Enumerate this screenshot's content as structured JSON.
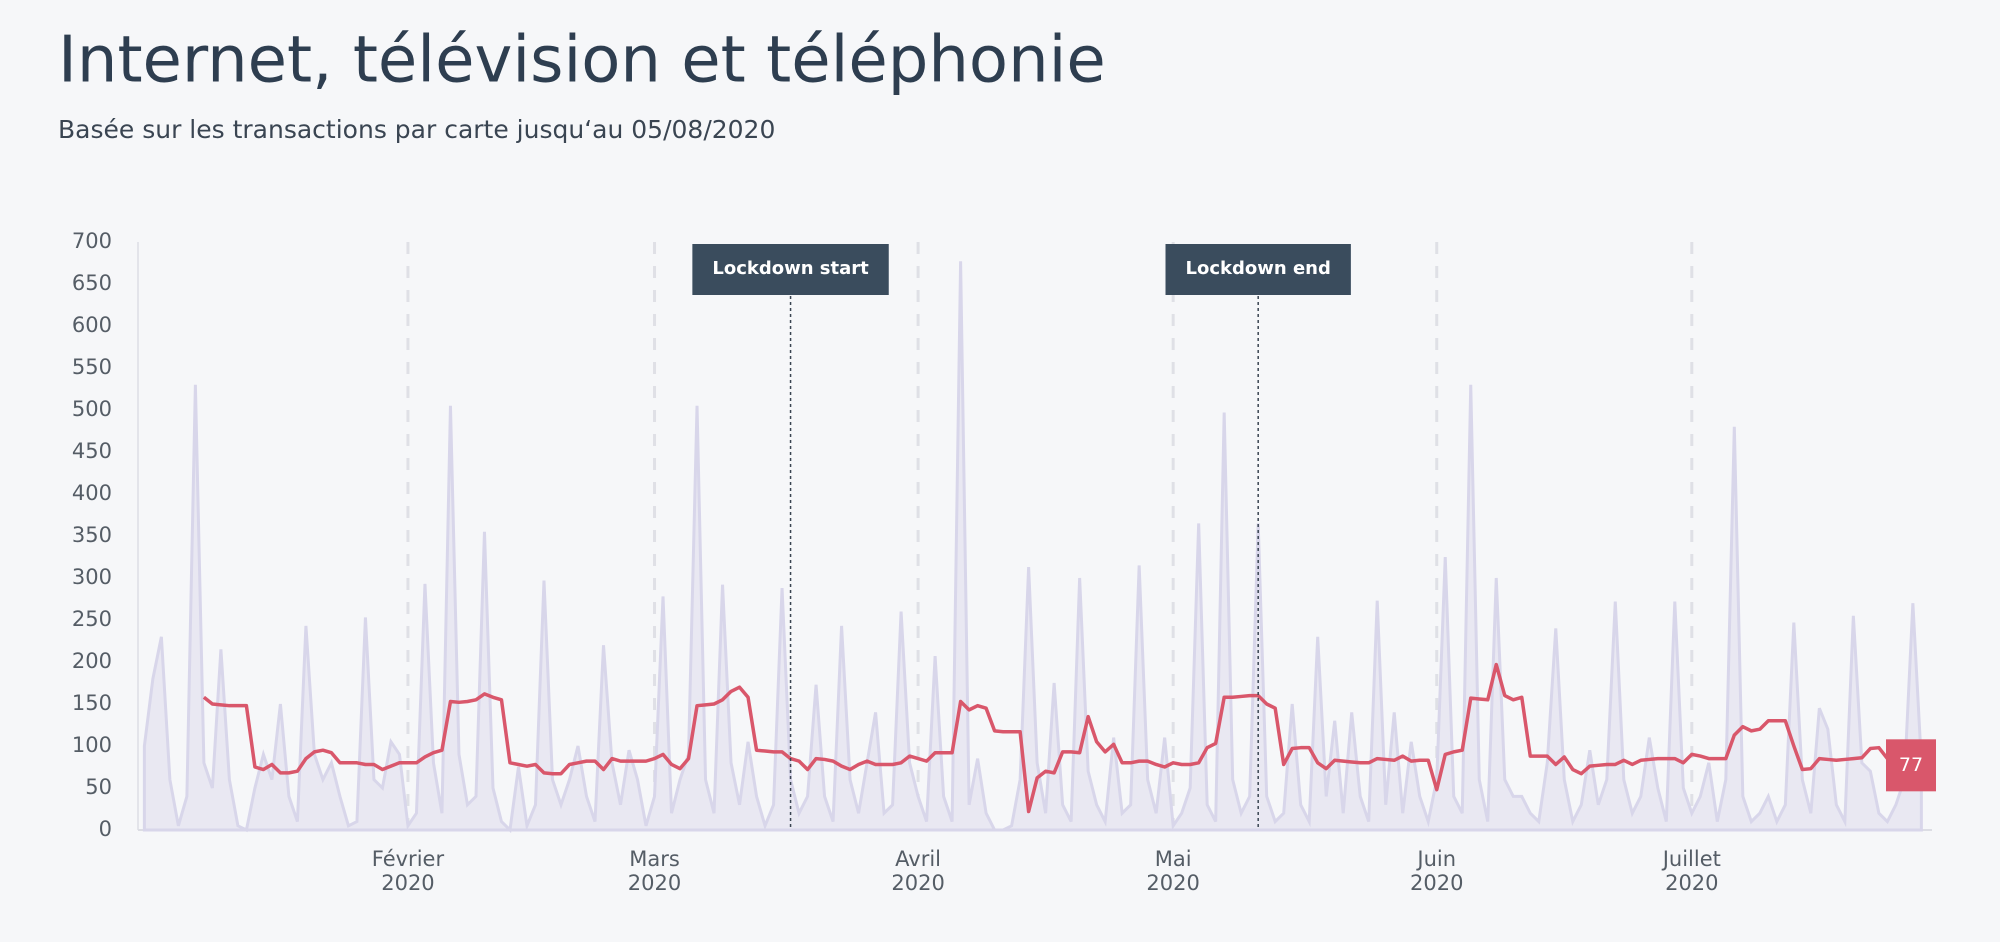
{
  "chart_data": {
    "type": "line",
    "title": "Internet, télévision et téléphonie",
    "subtitle": "Basée sur les transactions par carte jusqu‘au 05/08/2020",
    "categories": [
      null,
      null,
      null,
      null,
      null,
      null,
      null,
      null,
      null,
      null,
      null,
      null,
      null,
      null,
      null,
      null,
      null,
      null,
      null,
      null,
      null,
      null,
      null,
      null,
      null,
      null,
      null,
      null,
      null,
      null,
      null,
      "Février 2020",
      null,
      null,
      null,
      null,
      null,
      null,
      null,
      null,
      null,
      null,
      null,
      null,
      null,
      null,
      null,
      null,
      null,
      null,
      null,
      null,
      null,
      null,
      null,
      null,
      null,
      null,
      null,
      null,
      "Mars 2020",
      null,
      null,
      null,
      null,
      null,
      null,
      null,
      null,
      null,
      null,
      null,
      null,
      null,
      null,
      null,
      null,
      null,
      null,
      null,
      null,
      null,
      null,
      null,
      null,
      null,
      null,
      null,
      null,
      null,
      null,
      "Avril 2020",
      null,
      null,
      null,
      null,
      null,
      null,
      null,
      null,
      null,
      null,
      null,
      null,
      null,
      null,
      null,
      null,
      null,
      null,
      null,
      null,
      null,
      null,
      null,
      null,
      null,
      null,
      null,
      null,
      null,
      "Mai 2020",
      null,
      null,
      null,
      null,
      null,
      null,
      null,
      null,
      null,
      null,
      null,
      null,
      null,
      null,
      null,
      null,
      null,
      null,
      null,
      null,
      null,
      null,
      null,
      null,
      null,
      null,
      null,
      null,
      null,
      null,
      "Juin 2020",
      null,
      null,
      null,
      null,
      null,
      null,
      null,
      null,
      null,
      null,
      null,
      null,
      null,
      null,
      null,
      null,
      null,
      null,
      null,
      null,
      null,
      null,
      null,
      null,
      null,
      null,
      null,
      null,
      null,
      "Juillet 2020",
      null,
      null,
      null,
      null,
      null,
      null,
      null,
      null,
      null,
      null,
      null,
      null,
      null,
      null,
      null,
      null,
      null,
      null,
      null,
      null,
      null,
      null,
      null,
      null,
      null,
      null,
      null
    ],
    "series": [
      {
        "color": "#d8d6ea",
        "fill": "#e9e8f2",
        "values": [
          100,
          180,
          230,
          60,
          5,
          40,
          530,
          80,
          50,
          215,
          60,
          5,
          0,
          50,
          90,
          60,
          150,
          40,
          10,
          243,
          90,
          60,
          80,
          40,
          5,
          10,
          253,
          60,
          50,
          105,
          90,
          5,
          20,
          293,
          80,
          20,
          505,
          90,
          30,
          40,
          355,
          50,
          10,
          0,
          75,
          5,
          30,
          297,
          60,
          30,
          60,
          100,
          40,
          10,
          220,
          80,
          30,
          95,
          60,
          5,
          40,
          278,
          20,
          60,
          90,
          505,
          60,
          20,
          292,
          80,
          30,
          105,
          40,
          5,
          30,
          288,
          60,
          20,
          40,
          173,
          40,
          10,
          243,
          60,
          20,
          80,
          140,
          20,
          30,
          260,
          80,
          40,
          10,
          207,
          40,
          10,
          677,
          30,
          85,
          20,
          0,
          0,
          5,
          60,
          313,
          80,
          20,
          175,
          30,
          10,
          300,
          70,
          30,
          10,
          110,
          20,
          30,
          315,
          60,
          20,
          110,
          5,
          20,
          50,
          365,
          30,
          10,
          497,
          60,
          20,
          40,
          365,
          40,
          10,
          20,
          150,
          30,
          10,
          230,
          40,
          130,
          20,
          140,
          40,
          10,
          273,
          30,
          140,
          20,
          105,
          40,
          10,
          60,
          325,
          40,
          20,
          530,
          60,
          10,
          300,
          60,
          40,
          40,
          20,
          10,
          80,
          240,
          60,
          10,
          30,
          95,
          30,
          60,
          272,
          60,
          20,
          40,
          110,
          50,
          10,
          272,
          50,
          20,
          40,
          80,
          10,
          60,
          480,
          40,
          10,
          20,
          40,
          10,
          30,
          247,
          60,
          20,
          145,
          120,
          30,
          10,
          255,
          80,
          70,
          20,
          10,
          30,
          60,
          270,
          80
        ]
      },
      {
        "color": "#d9576b",
        "values": [
          null,
          null,
          null,
          null,
          null,
          null,
          null,
          158,
          150,
          149,
          148,
          148,
          148,
          75,
          72,
          78,
          68,
          68,
          70,
          85,
          93,
          95,
          92,
          80,
          80,
          80,
          78,
          78,
          72,
          76,
          80,
          80,
          80,
          87,
          92,
          95,
          153,
          152,
          153,
          155,
          162,
          158,
          155,
          80,
          78,
          76,
          78,
          68,
          67,
          67,
          78,
          80,
          82,
          82,
          72,
          85,
          82,
          82,
          82,
          82,
          85,
          90,
          78,
          73,
          85,
          148,
          149,
          150,
          155,
          165,
          170,
          158,
          95,
          94,
          93,
          93,
          85,
          82,
          72,
          85,
          84,
          82,
          76,
          72,
          78,
          82,
          78,
          78,
          78,
          80,
          88,
          85,
          82,
          92,
          92,
          92,
          153,
          143,
          148,
          145,
          118,
          117,
          117,
          117,
          22,
          62,
          70,
          68,
          93,
          93,
          92,
          135,
          105,
          93,
          102,
          80,
          80,
          82,
          82,
          78,
          75,
          80,
          78,
          78,
          80,
          98,
          103,
          158,
          158,
          159,
          160,
          160,
          150,
          145,
          78,
          97,
          98,
          98,
          80,
          73,
          83,
          82,
          81,
          80,
          80,
          85,
          84,
          83,
          88,
          82,
          83,
          83,
          48,
          90,
          93,
          95,
          157,
          156,
          155,
          197,
          160,
          155,
          158,
          88,
          88,
          88,
          78,
          87,
          72,
          67,
          76,
          77,
          78,
          78,
          83,
          78,
          83,
          84,
          85,
          85,
          85,
          80,
          90,
          88,
          85,
          85,
          85,
          113,
          123,
          118,
          120,
          130,
          130,
          130,
          100,
          72,
          73,
          85,
          84,
          83,
          84,
          85,
          86,
          97,
          98,
          85,
          80,
          77,
          null,
          null
        ]
      }
    ],
    "ylim": [
      0,
      700
    ],
    "yticks": [
      0,
      50,
      100,
      150,
      200,
      250,
      300,
      350,
      400,
      450,
      500,
      550,
      600,
      650,
      700
    ],
    "annotations": [
      {
        "text": "Lockdown start",
        "at": 76
      },
      {
        "text": "Lockdown end",
        "at": 131
      }
    ]
  }
}
